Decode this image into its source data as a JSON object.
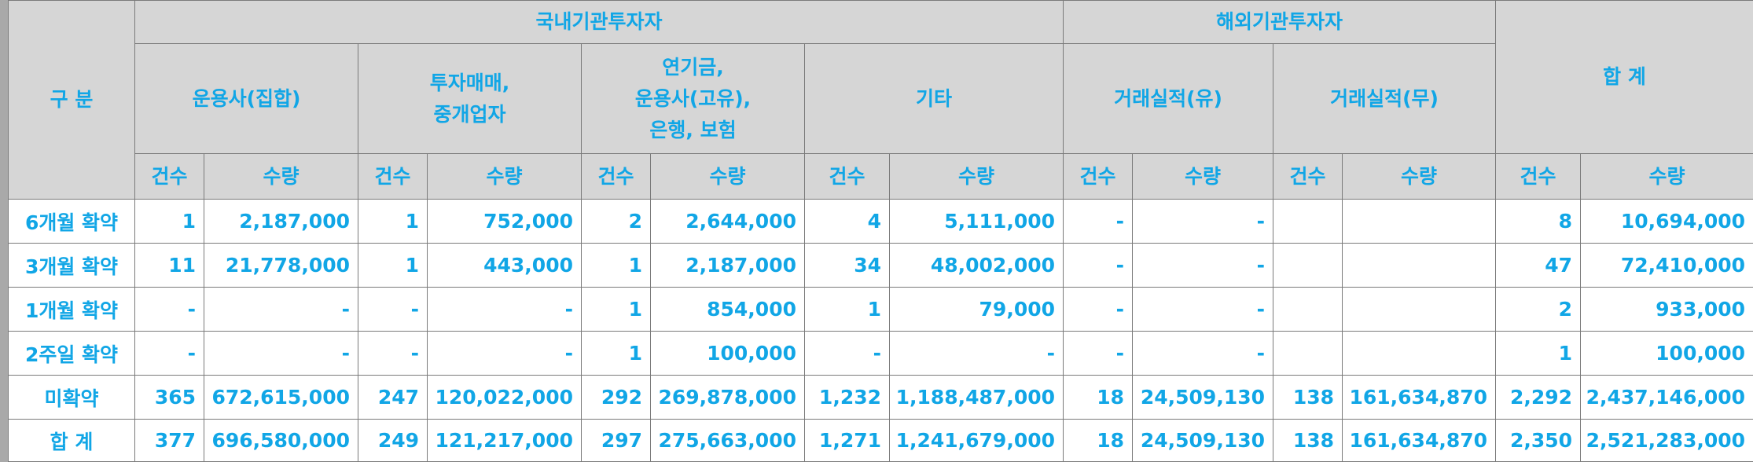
{
  "header": {
    "category": "구 분",
    "domestic": "국내기관투자자",
    "foreign": "해외기관투자자",
    "total": "합 계",
    "groups": {
      "asset_mgr_collective": "운용사(집합)",
      "investment_trading": [
        "투자매매,",
        "중개업자"
      ],
      "pension": [
        "연기금,",
        "운용사(고유),",
        "은행, 보험"
      ],
      "others": "기타",
      "record_yes": "거래실적(유)",
      "record_no": "거래실적(무)"
    },
    "count": "건수",
    "quantity": "수량"
  },
  "rows": [
    {
      "label": "6개월 확약",
      "cells": [
        "1",
        "2,187,000",
        "1",
        "752,000",
        "2",
        "2,644,000",
        "4",
        "5,111,000",
        "-",
        "-",
        "",
        "",
        "8",
        "10,694,000"
      ]
    },
    {
      "label": "3개월 확약",
      "cells": [
        "11",
        "21,778,000",
        "1",
        "443,000",
        "1",
        "2,187,000",
        "34",
        "48,002,000",
        "-",
        "-",
        "",
        "",
        "47",
        "72,410,000"
      ]
    },
    {
      "label": "1개월 확약",
      "cells": [
        "-",
        "-",
        "-",
        "-",
        "1",
        "854,000",
        "1",
        "79,000",
        "-",
        "-",
        "",
        "",
        "2",
        "933,000"
      ]
    },
    {
      "label": "2주일 확약",
      "cells": [
        "-",
        "-",
        "-",
        "-",
        "1",
        "100,000",
        "-",
        "-",
        "-",
        "-",
        "",
        "",
        "1",
        "100,000"
      ]
    },
    {
      "label": "미확약",
      "cells": [
        "365",
        "672,615,000",
        "247",
        "120,022,000",
        "292",
        "269,878,000",
        "1,232",
        "1,188,487,000",
        "18",
        "24,509,130",
        "138",
        "161,634,870",
        "2,292",
        "2,437,146,000"
      ]
    },
    {
      "label": "합 계",
      "cells": [
        "377",
        "696,580,000",
        "249",
        "121,217,000",
        "297",
        "275,663,000",
        "1,271",
        "1,241,679,000",
        "18",
        "24,509,130",
        "138",
        "161,634,870",
        "2,350",
        "2,521,283,000"
      ]
    }
  ],
  "colors": {
    "text": "#11a6e6",
    "header_bg": "#d6d6d6",
    "border": "#7a7a7a",
    "frame": "#a9a9a9"
  }
}
